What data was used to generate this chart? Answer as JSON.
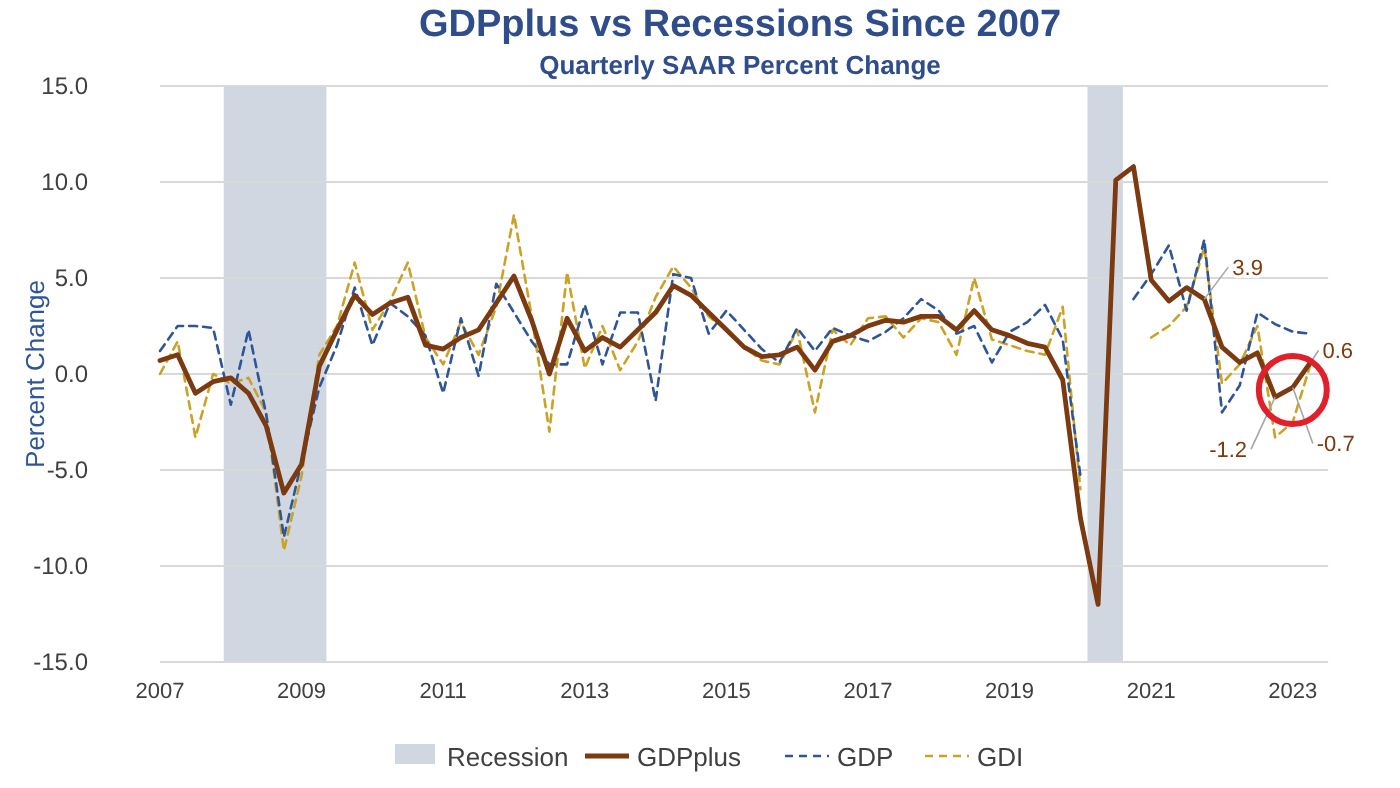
{
  "chart_data": {
    "type": "line",
    "title": "GDPplus vs Recessions Since 2007",
    "subtitle": "Quarterly SAAR Percent Change",
    "ylabel": "Percent Change",
    "x": [
      2007,
      2007.25,
      2007.5,
      2007.75,
      2008,
      2008.25,
      2008.5,
      2008.75,
      2009,
      2009.25,
      2009.5,
      2009.75,
      2010,
      2010.25,
      2010.5,
      2010.75,
      2011,
      2011.25,
      2011.5,
      2011.75,
      2012,
      2012.25,
      2012.5,
      2012.75,
      2013,
      2013.25,
      2013.5,
      2013.75,
      2014,
      2014.25,
      2014.5,
      2014.75,
      2015,
      2015.25,
      2015.5,
      2015.75,
      2016,
      2016.25,
      2016.5,
      2016.75,
      2017,
      2017.25,
      2017.5,
      2017.75,
      2018,
      2018.25,
      2018.5,
      2018.75,
      2019,
      2019.25,
      2019.5,
      2019.75,
      2020,
      2020.25,
      2020.5,
      2020.75,
      2021,
      2021.25,
      2021.5,
      2021.75,
      2022,
      2022.25,
      2022.5,
      2022.75,
      2023,
      2023.25
    ],
    "series": [
      {
        "name": "GDPplus",
        "color": "#7b3a10",
        "line_style": "solid",
        "values": [
          0.7,
          1.0,
          -1.0,
          -0.4,
          -0.2,
          -1.0,
          -2.7,
          -6.2,
          -4.7,
          0.4,
          2.3,
          4.1,
          3.1,
          3.7,
          4.0,
          1.5,
          1.3,
          1.9,
          2.3,
          3.7,
          5.1,
          2.8,
          0.0,
          2.9,
          1.2,
          1.9,
          1.4,
          2.3,
          3.2,
          4.6,
          4.1,
          3.2,
          2.3,
          1.4,
          0.9,
          1.0,
          1.4,
          0.2,
          1.7,
          2.0,
          2.5,
          2.8,
          2.7,
          3.0,
          3.0,
          2.3,
          3.3,
          2.3,
          2.0,
          1.6,
          1.4,
          -0.3,
          -7.5,
          -12.0,
          10.1,
          10.8,
          4.9,
          3.8,
          4.5,
          3.9,
          1.4,
          0.6,
          1.1,
          -1.2,
          -0.7,
          0.6
        ]
      },
      {
        "name": "GDP",
        "color": "#2f5597",
        "line_style": "dashed",
        "values": [
          1.2,
          2.5,
          2.5,
          2.4,
          -1.6,
          2.3,
          -2.1,
          -8.5,
          -4.6,
          -0.7,
          1.5,
          4.5,
          1.5,
          3.7,
          3.0,
          2.0,
          -1.0,
          2.9,
          -0.1,
          4.7,
          3.2,
          1.7,
          0.5,
          0.5,
          3.6,
          0.5,
          3.2,
          3.2,
          -1.4,
          5.2,
          5.0,
          2.1,
          3.3,
          2.3,
          1.3,
          0.6,
          2.4,
          1.2,
          2.4,
          2.0,
          1.7,
          2.2,
          2.9,
          3.9,
          3.3,
          2.1,
          2.5,
          0.6,
          2.2,
          2.7,
          3.6,
          1.8,
          -5.3,
          null,
          null,
          3.9,
          5.2,
          6.7,
          3.3,
          7.0,
          -2.0,
          -0.6,
          3.2,
          2.6,
          2.2,
          2.1
        ]
      },
      {
        "name": "GDI",
        "color": "#c9a227",
        "line_style": "dashed",
        "values": [
          0.0,
          1.7,
          -3.3,
          0.0,
          -0.5,
          -0.2,
          -2.0,
          -9.2,
          -5.3,
          1.0,
          2.5,
          5.8,
          2.3,
          3.8,
          5.8,
          1.9,
          0.5,
          2.7,
          1.0,
          3.5,
          8.3,
          3.0,
          -3.0,
          5.3,
          0.3,
          2.5,
          0.2,
          1.7,
          4.0,
          5.6,
          4.5,
          3.0,
          2.3,
          1.4,
          0.7,
          0.5,
          2.3,
          -2.0,
          2.3,
          1.5,
          2.9,
          3.0,
          1.9,
          2.9,
          2.7,
          1.0,
          5.0,
          1.8,
          1.5,
          1.2,
          1.0,
          3.5,
          -6.0,
          null,
          null,
          null,
          1.9,
          2.5,
          3.5,
          6.6,
          -0.5,
          0.5,
          2.5,
          -3.3,
          -2.5,
          0.5
        ]
      }
    ],
    "xlim": [
      2007,
      2023.5
    ],
    "xticks": [
      2007,
      2009,
      2011,
      2013,
      2015,
      2017,
      2019,
      2021,
      2023
    ],
    "ylim": [
      -15,
      15
    ],
    "yticks": [
      {
        "value": -15,
        "label": "-15.0"
      },
      {
        "value": -10,
        "label": "-10.0"
      },
      {
        "value": -5,
        "label": "-5.0"
      },
      {
        "value": 0,
        "label": "0.0"
      },
      {
        "value": 5,
        "label": "5.0"
      },
      {
        "value": 10,
        "label": "10.0"
      },
      {
        "value": 15,
        "label": "15.0"
      }
    ],
    "bands": [
      {
        "axis": "x",
        "from": 2007.9,
        "to": 2009.35,
        "label": "Recession",
        "color": "#d0d7e1"
      },
      {
        "axis": "x",
        "from": 2020.1,
        "to": 2020.6,
        "color": "#d0d7e1"
      }
    ],
    "annotations": [
      {
        "text": "3.9",
        "x": 2021.75,
        "y": 3.9
      },
      {
        "text": "-1.2",
        "x": 2022.75,
        "y": -1.2
      },
      {
        "text": "-0.7",
        "x": 2023,
        "y": -0.7
      },
      {
        "text": "0.6",
        "x": 2023.25,
        "y": 0.6
      }
    ],
    "grid": "y",
    "legend": "bottom",
    "marker": "none"
  }
}
